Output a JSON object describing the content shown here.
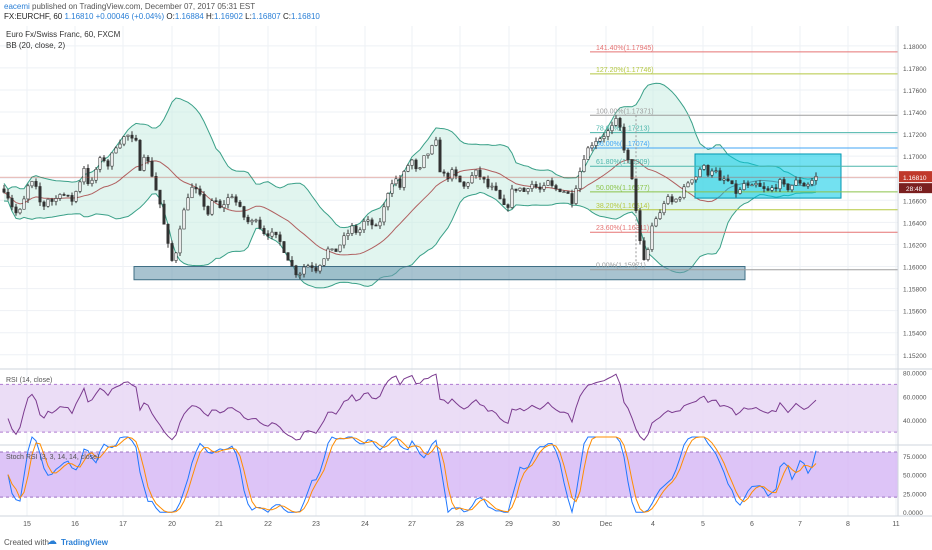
{
  "header": {
    "author": "eacemi",
    "published_text": "published on TradingView.com, December 07, 2017 05:31 EST",
    "symbol": "FX:EURCHF, 60",
    "price": "1.16810",
    "change": "+0.00046 (+0.04%)",
    "open_label": "O:",
    "open": "1.16884",
    "high_label": "H:",
    "high": "1.16902",
    "low_label": "L:",
    "low": "1.16807",
    "close_label": "C:",
    "close": "1.16810"
  },
  "legend": {
    "title": "Euro Fx/Swiss Franc, 60, FXCM",
    "indicator": "BB (20, close, 2)",
    "rsi_label": "RSI (14, close)",
    "stoch_label": "Stoch RSI (3, 3, 14, 14, close)"
  },
  "footer": {
    "created_with": "Created with",
    "brand": "TradingView"
  },
  "colors": {
    "candle": "#333333",
    "bb_band": "#3aa088",
    "bb_basis": "#b06060",
    "bb_fill": "#c9ece2",
    "rsi_line": "#7b3b8f",
    "rsi_fill": "#e9d9f5",
    "stoch_k": "#1f77ff",
    "stoch_d": "#ff8c00",
    "stoch_fill": "#d4b5f5",
    "support_zone": "#6e9bb0",
    "range_box": "#00c8e6",
    "last_price": "#c0392b"
  },
  "chart_data": [
    {
      "type": "candlestick",
      "title": "Euro Fx/Swiss Franc, 60, FXCM",
      "ylim": [
        1.1508,
        1.1818
      ],
      "price_axis_ticks": [
        "1.18000",
        "1.17800",
        "1.17600",
        "1.17400",
        "1.17200",
        "1.17000",
        "1.16800",
        "1.16600",
        "1.16400",
        "1.16200",
        "1.16000",
        "1.15800",
        "1.15600",
        "1.15400",
        "1.15200"
      ],
      "price_axis_values": [
        1.18,
        1.178,
        1.176,
        1.174,
        1.172,
        1.17,
        1.168,
        1.166,
        1.164,
        1.162,
        1.16,
        1.158,
        1.156,
        1.154,
        1.152
      ],
      "x_ticks": [
        "15",
        "16",
        "17",
        "20",
        "21",
        "22",
        "23",
        "24",
        "27",
        "28",
        "29",
        "30",
        "Dec",
        "4",
        "5",
        "6",
        "7",
        "8",
        "11"
      ],
      "last_price_label": "1.16810",
      "countdown_label": "28:48",
      "price_path": [
        [
          0,
          1.1675
        ],
        [
          6,
          1.1668
        ],
        [
          12,
          1.1655
        ],
        [
          18,
          1.1645
        ],
        [
          24,
          1.166
        ],
        [
          30,
          1.1678
        ],
        [
          36,
          1.167
        ],
        [
          42,
          1.1652
        ],
        [
          48,
          1.1662
        ],
        [
          54,
          1.1658
        ],
        [
          60,
          1.1668
        ],
        [
          66,
          1.1663
        ],
        [
          72,
          1.166
        ],
        [
          78,
          1.1672
        ],
        [
          84,
          1.169
        ],
        [
          90,
          1.167
        ],
        [
          96,
          1.1688
        ],
        [
          102,
          1.17
        ],
        [
          108,
          1.1692
        ],
        [
          114,
          1.1705
        ],
        [
          118,
          1.1715
        ],
        [
          122,
          1.1712
        ],
        [
          126,
          1.1722
        ],
        [
          130,
          1.1715
        ],
        [
          136,
          1.1712
        ],
        [
          140,
          1.169
        ],
        [
          144,
          1.1702
        ],
        [
          150,
          1.169
        ],
        [
          156,
          1.167
        ],
        [
          162,
          1.165
        ],
        [
          166,
          1.1625
        ],
        [
          170,
          1.1612
        ],
        [
          174,
          1.1598
        ],
        [
          178,
          1.163
        ],
        [
          184,
          1.165
        ],
        [
          190,
          1.1672
        ],
        [
          196,
          1.1668
        ],
        [
          202,
          1.166
        ],
        [
          208,
          1.1648
        ],
        [
          214,
          1.1662
        ],
        [
          220,
          1.1652
        ],
        [
          226,
          1.166
        ],
        [
          232,
          1.1665
        ],
        [
          238,
          1.1655
        ],
        [
          244,
          1.1645
        ],
        [
          250,
          1.1638
        ],
        [
          256,
          1.1645
        ],
        [
          262,
          1.1632
        ],
        [
          268,
          1.163
        ],
        [
          274,
          1.1628
        ],
        [
          280,
          1.1622
        ],
        [
          286,
          1.1612
        ],
        [
          292,
          1.16
        ],
        [
          298,
          1.1592
        ],
        [
          304,
          1.16
        ],
        [
          310,
          1.1602
        ],
        [
          316,
          1.1598
        ],
        [
          322,
          1.1606
        ],
        [
          328,
          1.1615
        ],
        [
          334,
          1.1612
        ],
        [
          340,
          1.162
        ],
        [
          346,
          1.1628
        ],
        [
          352,
          1.1635
        ],
        [
          358,
          1.163
        ],
        [
          364,
          1.164
        ],
        [
          370,
          1.164
        ],
        [
          376,
          1.1634
        ],
        [
          382,
          1.1645
        ],
        [
          388,
          1.1668
        ],
        [
          394,
          1.1682
        ],
        [
          400,
          1.1672
        ],
        [
          406,
          1.169
        ],
        [
          412,
          1.1696
        ],
        [
          418,
          1.1682
        ],
        [
          424,
          1.1698
        ],
        [
          430,
          1.1705
        ],
        [
          436,
          1.1712
        ],
        [
          440,
          1.1688
        ],
        [
          446,
          1.168
        ],
        [
          452,
          1.1685
        ],
        [
          458,
          1.1678
        ],
        [
          464,
          1.1672
        ],
        [
          470,
          1.168
        ],
        [
          476,
          1.1685
        ],
        [
          482,
          1.168
        ],
        [
          488,
          1.1672
        ],
        [
          494,
          1.167
        ],
        [
          500,
          1.166
        ],
        [
          506,
          1.165
        ],
        [
          512,
          1.1668
        ],
        [
          518,
          1.1672
        ],
        [
          524,
          1.1668
        ],
        [
          530,
          1.1676
        ],
        [
          536,
          1.1672
        ],
        [
          542,
          1.1668
        ],
        [
          548,
          1.1676
        ],
        [
          554,
          1.167
        ],
        [
          560,
          1.167
        ],
        [
          566,
          1.1668
        ],
        [
          572,
          1.166
        ],
        [
          578,
          1.168
        ],
        [
          584,
          1.17
        ],
        [
          590,
          1.171
        ],
        [
          596,
          1.1715
        ],
        [
          602,
          1.1718
        ],
        [
          608,
          1.1722
        ],
        [
          614,
          1.1728
        ],
        [
          618,
          1.1735
        ],
        [
          622,
          1.1715
        ],
        [
          626,
          1.17
        ],
        [
          630,
          1.169
        ],
        [
          634,
          1.1665
        ],
        [
          638,
          1.164
        ],
        [
          642,
          1.1603
        ],
        [
          646,
          1.1605
        ],
        [
          650,
          1.1625
        ],
        [
          654,
          1.1648
        ],
        [
          658,
          1.164
        ],
        [
          662,
          1.1655
        ],
        [
          666,
          1.1662
        ],
        [
          672,
          1.1658
        ],
        [
          678,
          1.1662
        ],
        [
          684,
          1.167
        ],
        [
          690,
          1.168
        ],
        [
          696,
          1.1682
        ],
        [
          702,
          1.1692
        ],
        [
          708,
          1.1685
        ],
        [
          714,
          1.169
        ],
        [
          720,
          1.1676
        ],
        [
          726,
          1.168
        ],
        [
          732,
          1.1672
        ],
        [
          738,
          1.1665
        ],
        [
          744,
          1.1675
        ],
        [
          750,
          1.167
        ],
        [
          756,
          1.1674
        ],
        [
          762,
          1.167
        ],
        [
          768,
          1.1668
        ],
        [
          774,
          1.1672
        ],
        [
          780,
          1.1676
        ],
        [
          786,
          1.167
        ],
        [
          792,
          1.1674
        ],
        [
          798,
          1.1678
        ],
        [
          804,
          1.1674
        ],
        [
          810,
          1.1676
        ],
        [
          814,
          1.168
        ],
        [
          818,
          1.1682
        ]
      ],
      "fibonacci": [
        {
          "label": "141.40%(1.17945)",
          "value": 1.17945,
          "color": "#e57373"
        },
        {
          "label": "127.20%(1.17746)",
          "value": 1.17746,
          "color": "#b5c840"
        },
        {
          "label": "100.00%(1.17371)",
          "value": 1.17371,
          "color": "#9e9e9e"
        },
        {
          "label": "78.60%(1.17213)",
          "value": 1.17213,
          "color": "#4db6ac"
        },
        {
          "label": "66.00%(1.17074)",
          "value": 1.17074,
          "color": "#42a5f5"
        },
        {
          "label": "61.80%(1.16909)",
          "value": 1.16909,
          "color": "#4db6ac"
        },
        {
          "label": "50.00%(1.16677)",
          "value": 1.16677,
          "color": "#8bc34a"
        },
        {
          "label": "38.20%(1.16514)",
          "value": 1.16514,
          "color": "#b5c840"
        },
        {
          "label": "23.60%(1.16311)",
          "value": 1.16311,
          "color": "#e57373"
        },
        {
          "label": "0.00%(1.15971)",
          "value": 1.15971,
          "color": "#9e9e9e"
        }
      ],
      "support_zone": {
        "x_start": 134,
        "x_end": 745,
        "y_top": 1.16,
        "y_bottom": 1.1588
      },
      "range_box": {
        "x_start": 695,
        "x_end": 841,
        "y_top": 1.1702,
        "y_bottom": 1.1662
      }
    },
    {
      "type": "line",
      "title": "RSI (14, close)",
      "ylim": [
        20,
        82
      ],
      "y_ticks": [
        "80.0000",
        "60.0000",
        "40.0000"
      ],
      "y_tick_values": [
        80,
        60,
        40
      ],
      "band": [
        70,
        30
      ],
      "series": [
        {
          "name": "RSI",
          "values_note": "derived"
        }
      ]
    },
    {
      "type": "line",
      "title": "Stoch RSI (3, 3, 14, 14, close)",
      "ylim": [
        -5,
        88
      ],
      "y_ticks": [
        "75.0000",
        "50.0000",
        "25.0000",
        "0.0000"
      ],
      "y_tick_values": [
        75,
        50,
        25,
        0
      ],
      "band": [
        80,
        20
      ]
    }
  ]
}
